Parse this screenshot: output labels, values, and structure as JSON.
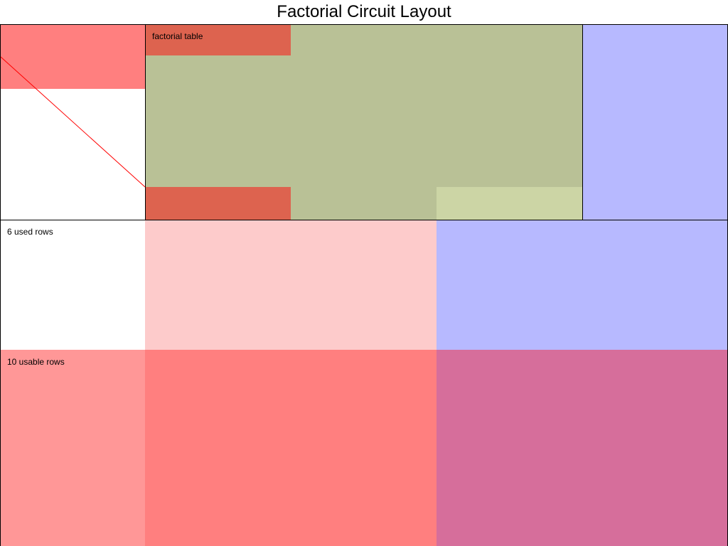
{
  "title": "Factorial Circuit Layout",
  "labels": {
    "factorial_table": "factorial table",
    "used_rows": "6 used rows",
    "usable_rows": "10 usable rows"
  },
  "colors": {
    "red_strong": "#ff7f7f",
    "red_table": "#dd634f",
    "green_advice": "#b9c196",
    "green_light": "#ccd5a5",
    "blue_fixed": "#b7b9ff",
    "pink_light": "#fdcbcb",
    "pink_medium": "#ff9797",
    "magenta": "#d66e9b",
    "line_red": "#ff0000",
    "border": "#000000"
  }
}
